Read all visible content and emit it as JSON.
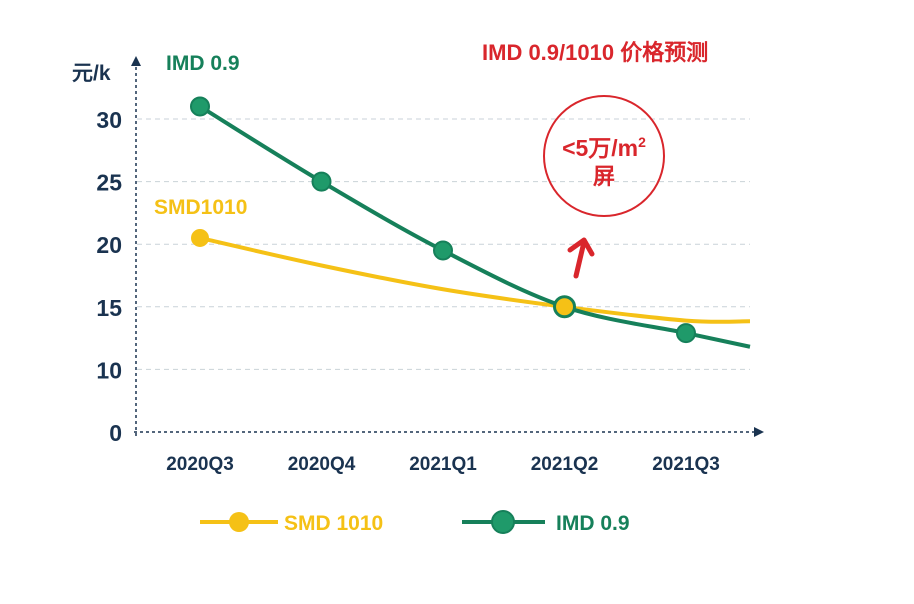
{
  "chart_data": {
    "type": "line",
    "title": "IMD 0.9/1010 价格预测",
    "ylabel": "元/k",
    "categories": [
      "2020Q3",
      "2020Q4",
      "2021Q1",
      "2021Q2",
      "2021Q3"
    ],
    "yticks": [
      0,
      10,
      15,
      20,
      25,
      30
    ],
    "ylim": [
      0,
      32
    ],
    "grid": true,
    "legend_placement": "bottom",
    "series": [
      {
        "name": "SMD 1010",
        "label": "SMD1010",
        "color": "#f5c116",
        "values": [
          20.5,
          18.3,
          16.4,
          15,
          13.9
        ],
        "markers": [
          true,
          false,
          false,
          true,
          false
        ]
      },
      {
        "name": "IMD 0.9",
        "label": "IMD 0.9",
        "color": "#16805a",
        "values": [
          31,
          25,
          19.5,
          15,
          12.9
        ],
        "markers": [
          true,
          true,
          true,
          true,
          true
        ]
      }
    ],
    "annotation": {
      "line1": "<5万/m",
      "sup": "2",
      "line2": "屏",
      "color": "#d9262c"
    }
  }
}
